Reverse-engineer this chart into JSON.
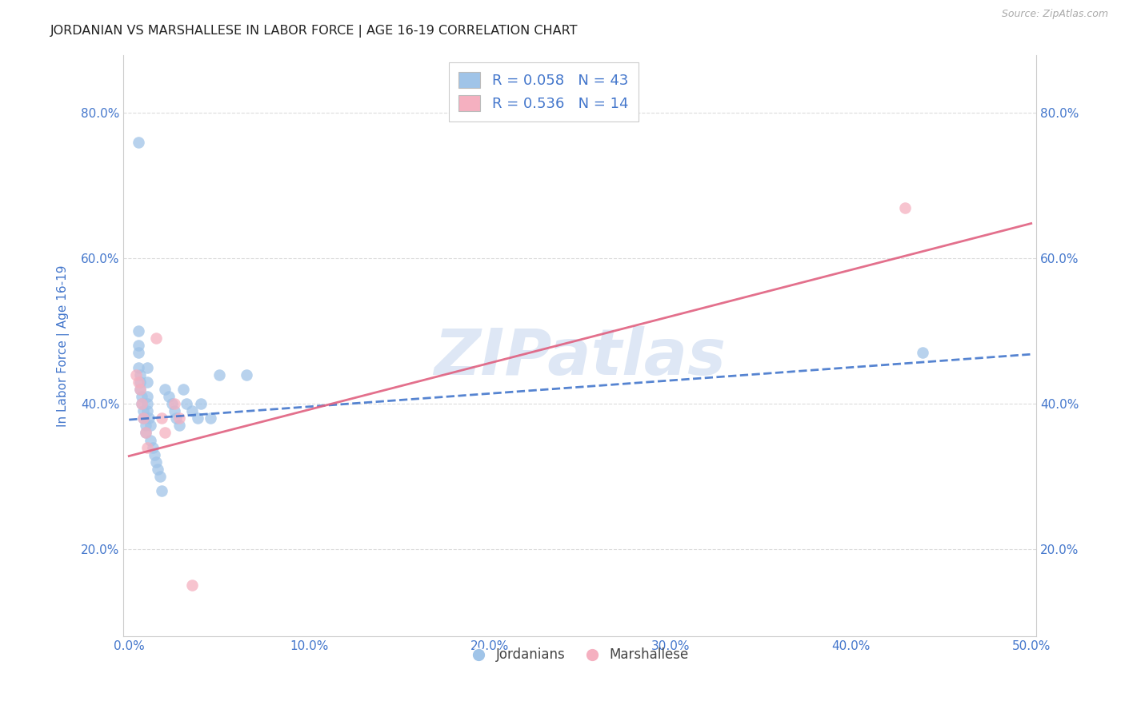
{
  "title": "JORDANIAN VS MARSHALLESE IN LABOR FORCE | AGE 16-19 CORRELATION CHART",
  "source": "Source: ZipAtlas.com",
  "ylabel": "In Labor Force | Age 16-19",
  "xlim": [
    -0.003,
    0.503
  ],
  "ylim": [
    0.08,
    0.88
  ],
  "xtick_vals": [
    0.0,
    0.1,
    0.2,
    0.3,
    0.4,
    0.5
  ],
  "ytick_vals": [
    0.2,
    0.4,
    0.6,
    0.8
  ],
  "blue_scatter_color": "#a0c4e8",
  "pink_scatter_color": "#f5b0c0",
  "trend_blue_color": "#4477cc",
  "trend_pink_color": "#e06080",
  "text_color": "#4477cc",
  "label_color": "#333333",
  "grid_color": "#cccccc",
  "background_color": "#ffffff",
  "watermark": "ZIPatlas",
  "watermark_color": "#c8d8ef",
  "blue_R": "0.058",
  "blue_N": "43",
  "pink_R": "0.536",
  "pink_N": "14",
  "jordanians_x": [
    0.005,
    0.005,
    0.005,
    0.005,
    0.005,
    0.006,
    0.006,
    0.006,
    0.007,
    0.007,
    0.008,
    0.008,
    0.009,
    0.009,
    0.01,
    0.01,
    0.01,
    0.01,
    0.01,
    0.011,
    0.012,
    0.012,
    0.013,
    0.014,
    0.015,
    0.016,
    0.017,
    0.018,
    0.02,
    0.022,
    0.024,
    0.025,
    0.026,
    0.028,
    0.03,
    0.032,
    0.035,
    0.038,
    0.04,
    0.045,
    0.05,
    0.065,
    0.44
  ],
  "jordanians_y": [
    0.76,
    0.5,
    0.48,
    0.47,
    0.45,
    0.44,
    0.43,
    0.42,
    0.41,
    0.4,
    0.39,
    0.38,
    0.37,
    0.36,
    0.45,
    0.43,
    0.41,
    0.4,
    0.39,
    0.38,
    0.37,
    0.35,
    0.34,
    0.33,
    0.32,
    0.31,
    0.3,
    0.28,
    0.42,
    0.41,
    0.4,
    0.39,
    0.38,
    0.37,
    0.42,
    0.4,
    0.39,
    0.38,
    0.4,
    0.38,
    0.44,
    0.44,
    0.47
  ],
  "marshallese_x": [
    0.004,
    0.005,
    0.006,
    0.007,
    0.008,
    0.009,
    0.01,
    0.015,
    0.018,
    0.02,
    0.025,
    0.028,
    0.035,
    0.43
  ],
  "marshallese_y": [
    0.44,
    0.43,
    0.42,
    0.4,
    0.38,
    0.36,
    0.34,
    0.49,
    0.38,
    0.36,
    0.4,
    0.38,
    0.15,
    0.67
  ],
  "blue_trend_x": [
    0.0,
    0.5
  ],
  "blue_trend_y": [
    0.378,
    0.468
  ],
  "pink_trend_x": [
    0.0,
    0.5
  ],
  "pink_trend_y": [
    0.328,
    0.648
  ]
}
